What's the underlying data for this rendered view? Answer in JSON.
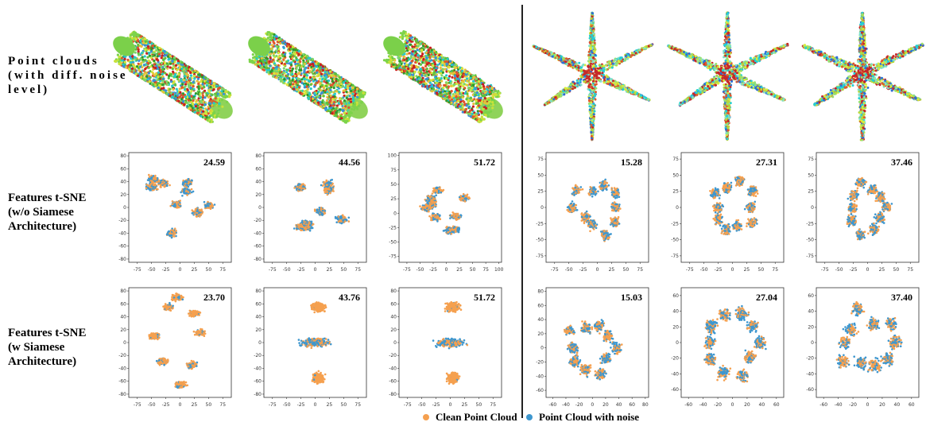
{
  "row_labels": {
    "point_clouds": "Point  clouds\n(with diff. noise\nlevel)",
    "tsne_without": "Features t-SNE\n(w/o Siamese\n Architecture)",
    "tsne_with": "Features t-SNE\n(w Siamese\nArchitecture)"
  },
  "colors": {
    "clean": "#f5a04f",
    "noisy": "#3e97cf"
  },
  "legend": {
    "clean": "Clean Point Cloud",
    "noisy": "Point Cloud with noise"
  },
  "point_cloud_shapes": [
    "cylinder",
    "cylinder",
    "cylinder",
    "star",
    "star",
    "star"
  ],
  "chart_data": [
    {
      "type": "scatter",
      "score": "24.59",
      "xticks": [
        "-75",
        "-50",
        "-25",
        "0",
        "25",
        "50",
        "75"
      ],
      "yticks": [
        "80",
        "60",
        "40",
        "20",
        "0",
        "-20",
        "-40",
        "-60",
        "-80"
      ],
      "xlim": [
        -90,
        90
      ],
      "ylim": [
        -85,
        85
      ]
    },
    {
      "type": "scatter",
      "score": "44.56",
      "xticks": [
        "-75",
        "-50",
        "-25",
        "0",
        "25",
        "50",
        "75"
      ],
      "yticks": [
        "80",
        "60",
        "40",
        "20",
        "0",
        "-20",
        "-40",
        "-60",
        "-80"
      ],
      "xlim": [
        -90,
        90
      ],
      "ylim": [
        -85,
        85
      ]
    },
    {
      "type": "scatter",
      "score": "51.72",
      "xticks": [
        "-75",
        "-50",
        "-25",
        "0",
        "25",
        "50",
        "75",
        "100"
      ],
      "yticks": [
        "100",
        "75",
        "50",
        "25",
        "0",
        "-25",
        "-50",
        "-75"
      ],
      "xlim": [
        -90,
        105
      ],
      "ylim": [
        -85,
        105
      ]
    },
    {
      "type": "scatter",
      "score": "15.28",
      "xticks": [
        "-75",
        "-50",
        "-25",
        "0",
        "25",
        "50",
        "75"
      ],
      "yticks": [
        "75",
        "50",
        "25",
        "0",
        "-25",
        "-50",
        "-75"
      ],
      "xlim": [
        -90,
        90
      ],
      "ylim": [
        -85,
        85
      ]
    },
    {
      "type": "scatter",
      "score": "27.31",
      "xticks": [
        "-75",
        "-50",
        "-25",
        "0",
        "25",
        "50",
        "75"
      ],
      "yticks": [
        "75",
        "50",
        "25",
        "0",
        "-25",
        "-50",
        "-75"
      ],
      "xlim": [
        -90,
        90
      ],
      "ylim": [
        -85,
        85
      ]
    },
    {
      "type": "scatter",
      "score": "37.46",
      "xticks": [
        "-75",
        "-50",
        "-25",
        "0",
        "25",
        "50",
        "75"
      ],
      "yticks": [
        "75",
        "50",
        "25",
        "0",
        "-25",
        "-50",
        "-75"
      ],
      "xlim": [
        -90,
        90
      ],
      "ylim": [
        -85,
        85
      ]
    },
    {
      "type": "scatter",
      "score": "23.70",
      "xticks": [
        "-75",
        "-50",
        "-25",
        "0",
        "25",
        "50",
        "75"
      ],
      "yticks": [
        "80",
        "60",
        "40",
        "20",
        "0",
        "-20",
        "-40",
        "-60",
        "-80"
      ],
      "xlim": [
        -90,
        90
      ],
      "ylim": [
        -85,
        85
      ]
    },
    {
      "type": "scatter",
      "score": "43.76",
      "xticks": [
        "-75",
        "-50",
        "-25",
        "0",
        "25",
        "50",
        "75"
      ],
      "yticks": [
        "80",
        "60",
        "40",
        "20",
        "0",
        "-20",
        "-40",
        "-60",
        "-80"
      ],
      "xlim": [
        -90,
        90
      ],
      "ylim": [
        -85,
        85
      ]
    },
    {
      "type": "scatter",
      "score": "51.72",
      "xticks": [
        "-75",
        "-50",
        "-25",
        "0",
        "25",
        "50",
        "75"
      ],
      "yticks": [
        "80",
        "60",
        "40",
        "20",
        "0",
        "-20",
        "-40",
        "-60",
        "-80"
      ],
      "xlim": [
        -90,
        90
      ],
      "ylim": [
        -85,
        85
      ]
    },
    {
      "type": "scatter",
      "score": "15.03",
      "xticks": [
        "-60",
        "-40",
        "-20",
        "0",
        "20",
        "40",
        "60",
        "80"
      ],
      "yticks": [
        "80",
        "60",
        "40",
        "20",
        "0",
        "-20",
        "-40",
        "-60"
      ],
      "xlim": [
        -70,
        85
      ],
      "ylim": [
        -70,
        85
      ]
    },
    {
      "type": "scatter",
      "score": "27.04",
      "xticks": [
        "-60",
        "-40",
        "-20",
        "0",
        "20",
        "40",
        "60"
      ],
      "yticks": [
        "60",
        "40",
        "20",
        "0",
        "-20",
        "-40",
        "-60"
      ],
      "xlim": [
        -70,
        70
      ],
      "ylim": [
        -70,
        70
      ]
    },
    {
      "type": "scatter",
      "score": "37.40",
      "xticks": [
        "-60",
        "-40",
        "-20",
        "0",
        "20",
        "40",
        "60"
      ],
      "yticks": [
        "60",
        "40",
        "20",
        "0",
        "-20",
        "-40",
        "-60"
      ],
      "xlim": [
        -70,
        70
      ],
      "ylim": [
        -70,
        70
      ]
    }
  ]
}
